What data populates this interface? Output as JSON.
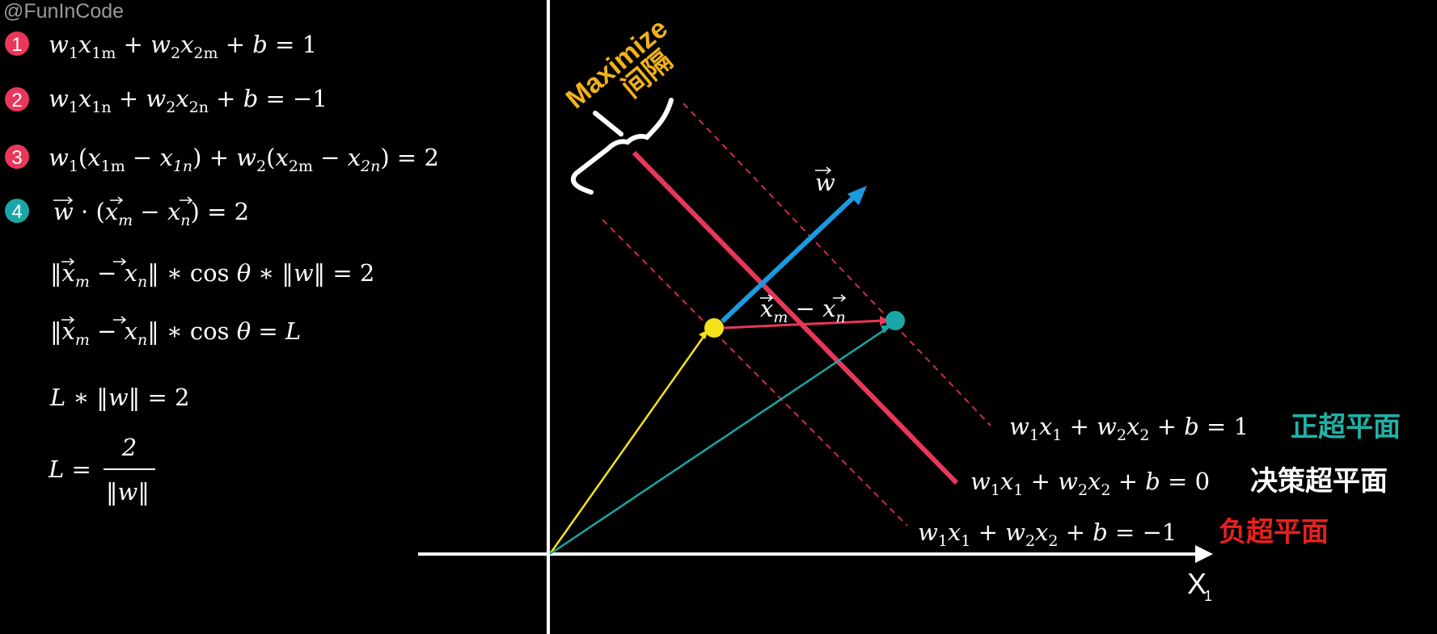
{
  "watermark": "@FunInCode",
  "steps": [
    {
      "num": "1",
      "color": "#e8375a"
    },
    {
      "num": "2",
      "color": "#e8375a"
    },
    {
      "num": "3",
      "color": "#e8375a"
    },
    {
      "num": "4",
      "color": "#1aa6a6"
    }
  ],
  "equations": {
    "eq3_rhs": "= 2",
    "eq4_rhs": "= 2",
    "eq5_rhs": "= 2",
    "eq6_rhs": "= L",
    "eq7_rhs": "= 2",
    "eq8_num": "2"
  },
  "margin_label": {
    "line1": "Maximize",
    "line2": "间隔",
    "color": "#f2b21a"
  },
  "vector_w_label": "w",
  "diff_label": "x_m − x_n",
  "hyperplanes": [
    {
      "rhs": "1",
      "tag": "正超平面",
      "tag_color": "#1fb3a8"
    },
    {
      "rhs": "0",
      "tag": "决策超平面",
      "tag_color": "#ffffff"
    },
    {
      "rhs": "−1",
      "tag": "负超平面",
      "tag_color": "#e82020"
    }
  ],
  "axis_label": "X",
  "axis_sub": "1",
  "colors": {
    "decision_line": "#e8375a",
    "w_arrow": "#1a9be0",
    "x_m_point": "#f5e21a",
    "x_n_point": "#1aa6a6",
    "margin_lines": "#c8304a"
  }
}
